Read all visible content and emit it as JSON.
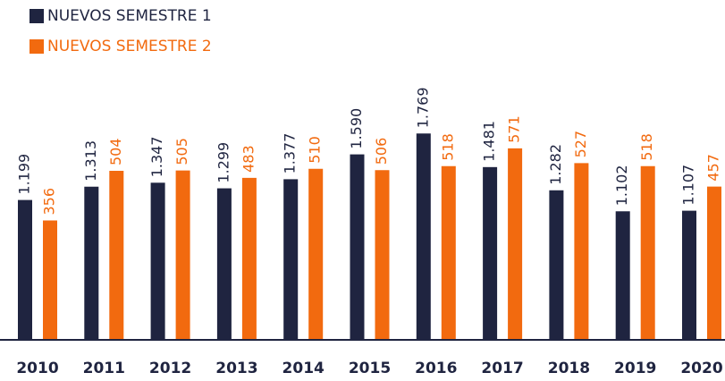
{
  "chart_data": {
    "type": "bar",
    "categories": [
      "2010",
      "2011",
      "2012",
      "2013",
      "2014",
      "2015",
      "2016",
      "2017",
      "2018",
      "2019",
      "2020"
    ],
    "series": [
      {
        "name": "NUEVOS SEMESTRE 1",
        "color": "#1f2440",
        "values": [
          1199,
          1313,
          1347,
          1299,
          1377,
          1590,
          1769,
          1481,
          1282,
          1102,
          1107
        ],
        "value_labels": [
          "1.199",
          "1.313",
          "1.347",
          "1.299",
          "1.377",
          "1.590",
          "1.769",
          "1.481",
          "1.282",
          "1.102",
          "1.107"
        ]
      },
      {
        "name": "NUEVOS SEMESTRE 2",
        "color": "#f26a0f",
        "axis": "y2",
        "values": [
          356,
          504,
          505,
          483,
          510,
          506,
          518,
          571,
          527,
          518,
          457
        ]
      }
    ],
    "ylim": [
      0,
      2300
    ],
    "y2lim": [
      0,
      800
    ],
    "legend": "top-left"
  }
}
